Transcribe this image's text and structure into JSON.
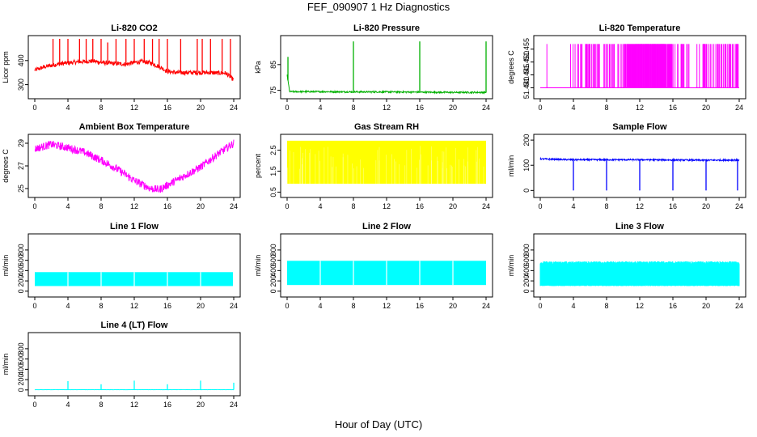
{
  "page": {
    "title": "FEF_090907  1 Hz Diagnostics",
    "xlabel": "Hour of Day (UTC)"
  },
  "chart_data": [
    {
      "type": "line",
      "title": "Li-820 CO2",
      "ylabel": "Licor ppm",
      "color": "#ff0000",
      "xlim": [
        0,
        24
      ],
      "ylim": [
        255,
        490
      ],
      "xticks": [
        0,
        4,
        8,
        12,
        16,
        20,
        24
      ],
      "yticks": [
        300,
        400
      ],
      "ytick_labels": [
        "300",
        "400"
      ],
      "series": [
        {
          "x": [
            0,
            1,
            2,
            3,
            4,
            5,
            6,
            7,
            8,
            9,
            10,
            11,
            12,
            13,
            14,
            15,
            16,
            17,
            18,
            19,
            20,
            21,
            22,
            23,
            24
          ],
          "y": [
            360,
            372,
            380,
            386,
            390,
            394,
            396,
            398,
            392,
            389,
            387,
            385,
            392,
            396,
            390,
            375,
            355,
            350,
            350,
            350,
            350,
            350,
            348,
            348,
            320
          ]
        }
      ],
      "spikes": {
        "x": [
          2.2,
          3.0,
          4.0,
          5.4,
          6.2,
          7.0,
          8.0,
          8.8,
          9.8,
          11.0,
          12.0,
          13.2,
          14.2,
          15.0,
          16.0,
          17.6,
          19.6,
          20.2,
          21.2,
          22.6,
          23.6
        ],
        "y": [
          490,
          490,
          490,
          490,
          490,
          490,
          490,
          475,
          490,
          490,
          490,
          490,
          490,
          490,
          490,
          490,
          490,
          490,
          490,
          490,
          490
        ]
      },
      "noise": 9
    },
    {
      "type": "line",
      "title": "Li-820 Pressure",
      "ylabel": "kPa",
      "color": "#00b000",
      "xlim": [
        0,
        24
      ],
      "ylim": [
        73,
        95
      ],
      "xticks": [
        0,
        4,
        8,
        12,
        16,
        20,
        24
      ],
      "yticks": [
        75,
        85
      ],
      "ytick_labels": [
        "75",
        "85"
      ],
      "series": [
        {
          "x": [
            0,
            0.3,
            1,
            4,
            8,
            12,
            16,
            20,
            24
          ],
          "y": [
            81,
            74.5,
            74.5,
            74.5,
            74.4,
            74.4,
            74.3,
            74.2,
            74.2
          ]
        }
      ],
      "spikes": {
        "x": [
          0.1,
          8,
          16,
          24
        ],
        "y": [
          88,
          94,
          94,
          94
        ]
      },
      "noise": 0.3
    },
    {
      "type": "band",
      "title": "Li-820 Temperature",
      "ylabel": "degrees C",
      "color": "#ff00ff",
      "xlim": [
        0,
        24
      ],
      "ylim": [
        51.437,
        51.459
      ],
      "xticks": [
        0,
        4,
        8,
        12,
        16,
        20,
        24
      ],
      "yticks": [
        51.44,
        51.445,
        51.45,
        51.455
      ],
      "ytick_labels": [
        "51.440",
        "51.445",
        "51.450",
        "51.455"
      ],
      "low": 51.44,
      "high": 51.457,
      "start": 0.8,
      "density_peak": [
        10,
        16
      ]
    },
    {
      "type": "line",
      "title": "Ambient Box Temperature",
      "ylabel": "degrees C",
      "color": "#ff00ff",
      "xlim": [
        0,
        24
      ],
      "ylim": [
        24.5,
        29.5
      ],
      "xticks": [
        0,
        4,
        8,
        12,
        16,
        20,
        24
      ],
      "yticks": [
        25,
        27,
        29
      ],
      "ytick_labels": [
        "25",
        "27",
        "29"
      ],
      "series": [
        {
          "x": [
            0,
            2,
            4,
            6,
            8,
            10,
            12,
            14,
            15,
            16,
            18,
            20,
            22,
            24
          ],
          "y": [
            28.5,
            28.9,
            28.6,
            28.2,
            27.5,
            26.7,
            25.7,
            25.0,
            24.9,
            25.3,
            26.1,
            26.9,
            28.0,
            29.0
          ]
        }
      ],
      "noise": 0.35
    },
    {
      "type": "band",
      "title": "Gas Stream RH",
      "ylabel": "percent",
      "color": "#ffff00",
      "xlim": [
        0,
        24
      ],
      "ylim": [
        0.4,
        3.1
      ],
      "xticks": [
        0,
        4,
        8,
        12,
        16,
        20,
        24
      ],
      "yticks": [
        0.5,
        1.5,
        2.5
      ],
      "ytick_labels": [
        "0.5",
        "1.5",
        "2.5"
      ],
      "low": 0.9,
      "high": 2.95,
      "start": 0,
      "density_peak": [
        0,
        24
      ]
    },
    {
      "type": "line",
      "title": "Sample Flow",
      "ylabel": "ml/min",
      "color": "#0000ff",
      "xlim": [
        0,
        24
      ],
      "ylim": [
        -15,
        210
      ],
      "xticks": [
        0,
        4,
        8,
        12,
        16,
        20,
        24
      ],
      "yticks": [
        0,
        100,
        200
      ],
      "ytick_labels": [
        "0",
        "100",
        "200"
      ],
      "series": [
        {
          "x": [
            0,
            4,
            8,
            12,
            16,
            20,
            24
          ],
          "y": [
            125,
            122,
            122,
            122,
            121,
            120,
            121
          ]
        }
      ],
      "dips": {
        "x": [
          4,
          8,
          12,
          16,
          20,
          23.8
        ],
        "y": [
          0,
          0,
          0,
          0,
          0,
          0
        ]
      },
      "noise": 3
    },
    {
      "type": "band",
      "title": "Line 1 Flow",
      "ylabel": "ml/min",
      "color": "#00ffff",
      "xlim": [
        0,
        24
      ],
      "ylim": [
        -50,
        1050
      ],
      "xticks": [
        0,
        4,
        8,
        12,
        16,
        20,
        24
      ],
      "yticks": [
        0,
        200,
        400,
        600,
        800
      ],
      "ytick_labels": [
        "0",
        "200",
        "400",
        "600",
        "800"
      ],
      "low": 100,
      "high": 370,
      "start": 0,
      "end": 23.9,
      "solid": true
    },
    {
      "type": "band",
      "title": "Line 2 Flow",
      "ylabel": "ml/min",
      "color": "#00ffff",
      "xlim": [
        0,
        24
      ],
      "ylim": [
        -50,
        1050
      ],
      "xticks": [
        0,
        4,
        8,
        12,
        16,
        20,
        24
      ],
      "yticks": [
        0,
        200,
        400,
        600,
        800
      ],
      "ytick_labels": [
        "0",
        "200",
        "400",
        "600",
        "800"
      ],
      "low": 120,
      "high": 590,
      "start": 0,
      "end": 24,
      "solid": true
    },
    {
      "type": "band",
      "title": "Line 3 Flow",
      "ylabel": "ml/min",
      "color": "#00ffff",
      "xlim": [
        0,
        24
      ],
      "ylim": [
        -50,
        1050
      ],
      "xticks": [
        0,
        4,
        8,
        12,
        16,
        20,
        24
      ],
      "yticks": [
        0,
        200,
        400,
        600,
        800
      ],
      "ytick_labels": [
        "0",
        "200",
        "400",
        "600",
        "800"
      ],
      "low": 100,
      "high": 580,
      "start": 0,
      "end": 24,
      "solid": false
    },
    {
      "type": "line",
      "title": "Line 4 (LT) Flow",
      "ylabel": "ml/min",
      "color": "#00ffff",
      "xlim": [
        0,
        24
      ],
      "ylim": [
        -50,
        1050
      ],
      "xticks": [
        0,
        4,
        8,
        12,
        16,
        20,
        24
      ],
      "yticks": [
        0,
        200,
        400,
        600,
        800
      ],
      "ytick_labels": [
        "0",
        "200",
        "400",
        "600",
        "800"
      ],
      "series": [
        {
          "x": [
            0,
            24
          ],
          "y": [
            5,
            5
          ]
        }
      ],
      "spikes": {
        "x": [
          4,
          8,
          12,
          16,
          20,
          24
        ],
        "y": [
          170,
          110,
          180,
          110,
          180,
          140
        ]
      },
      "noise": 2
    }
  ]
}
